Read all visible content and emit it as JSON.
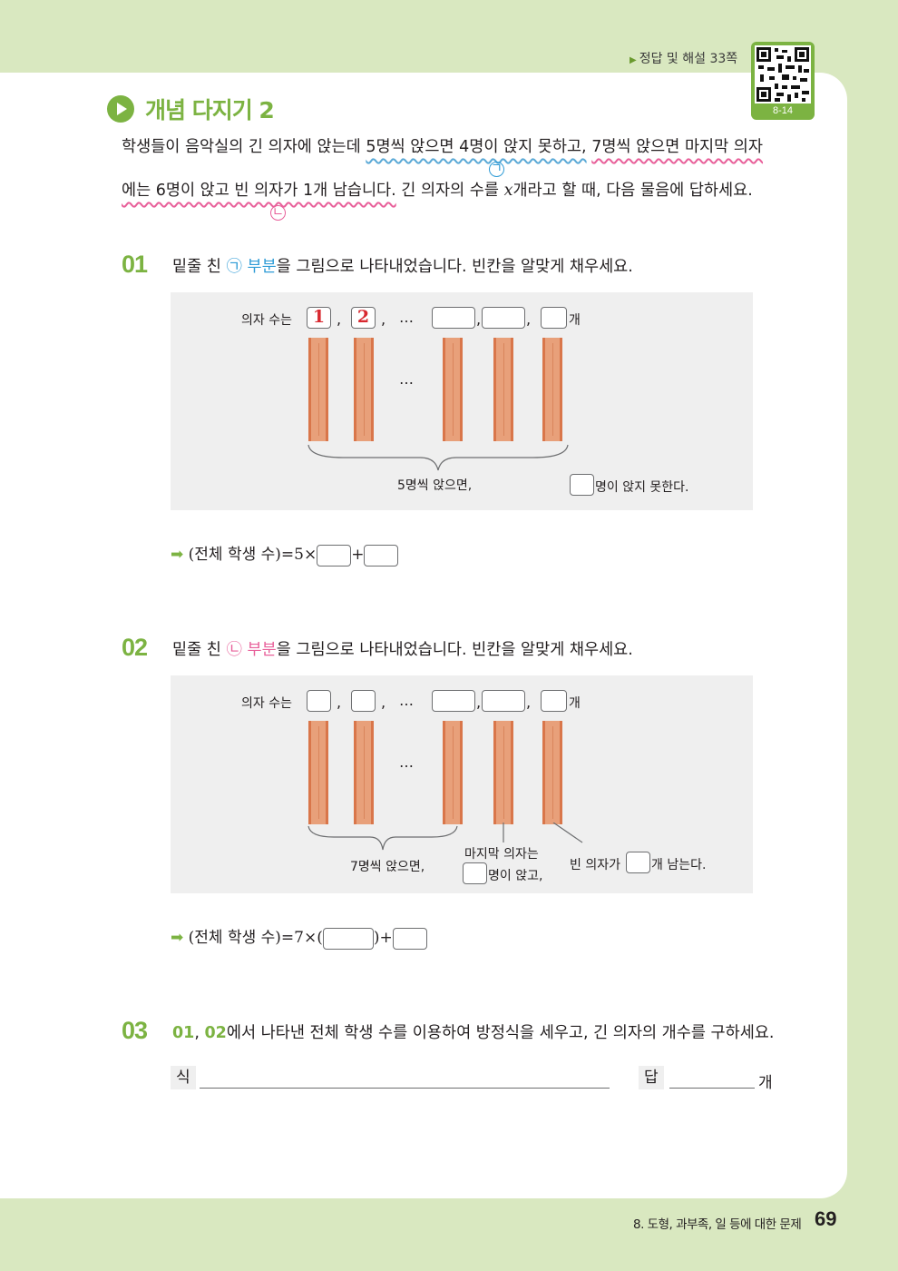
{
  "header": {
    "answer_ref": "정답 및 해설 33쪽",
    "qr_code_label": "8-14"
  },
  "concept": {
    "title": "개념 다지기 2"
  },
  "intro": {
    "line1_a": "학생들이 음악실의 긴 의자에 앉는데 ",
    "line1_b": "5명씩 앉으면 4명이 앉지 못하고,",
    "line1_c": " ",
    "line1_d": "7명씩 앉으면 마지막 의자",
    "line2_a": "에는 6명이 앉고 빈 의자가 1개 남습니다.",
    "line2_b": " 긴 의자의 수를 ",
    "line2_var": "x",
    "line2_c": "개라고 할 때, 다음 물음에 답하세요.",
    "mark_a": "㉠",
    "mark_b": "㉡"
  },
  "q1": {
    "number": "01",
    "text_a": "밑줄 친 ",
    "mark": "㉠ 부분",
    "text_b": "을 그림으로 나타내었습니다. 빈칸을 알맞게 채우세요.",
    "chairs_label": "의자 수는",
    "filled_1": "1",
    "filled_2": "2",
    "comma": ",",
    "ellipsis": "…",
    "unit": "개",
    "brace_label": "5명씩 앉으면,",
    "remain_label": "명이 앉지 못한다.",
    "formula_a": "(전체 학생 수)=5×",
    "formula_plus": "+"
  },
  "q2": {
    "number": "02",
    "text_a": "밑줄 친 ",
    "mark": "㉡ 부분",
    "text_b": "을 그림으로 나타내었습니다. 빈칸을 알맞게 채우세요.",
    "chairs_label": "의자 수는",
    "comma": ",",
    "ellipsis": "…",
    "unit": "개",
    "brace_label": "7명씩 앉으면,",
    "last_chair_1": "마지막 의자는",
    "last_chair_2": "명이 앉고,",
    "empty_a": "빈 의자가",
    "empty_b": "개 남는다.",
    "formula_a": "(전체 학생 수)=7×(",
    "formula_b": ")+"
  },
  "q3": {
    "number": "03",
    "ref_a": "01",
    "ref_sep": ", ",
    "ref_b": "02",
    "text": "에서 나타낸 전체 학생 수를 이용하여 방정식을 세우고, 긴 의자의 개수를 구하세요.",
    "expr_label": "식",
    "answer_label": "답",
    "answer_unit": "개"
  },
  "footer": {
    "chapter": "8. 도형, 과부족, 일 등에 대한 문제",
    "page": "69"
  },
  "colors": {
    "accent_green": "#7cb342",
    "band_green": "#d9e8c0",
    "blue_mark": "#2e9bd6",
    "pink_mark": "#e8609a",
    "chair_wood": "#e8a07a",
    "filled_red": "#d8282f"
  },
  "icons": [
    "play-icon",
    "qr-code",
    "arrow-right-icon"
  ]
}
